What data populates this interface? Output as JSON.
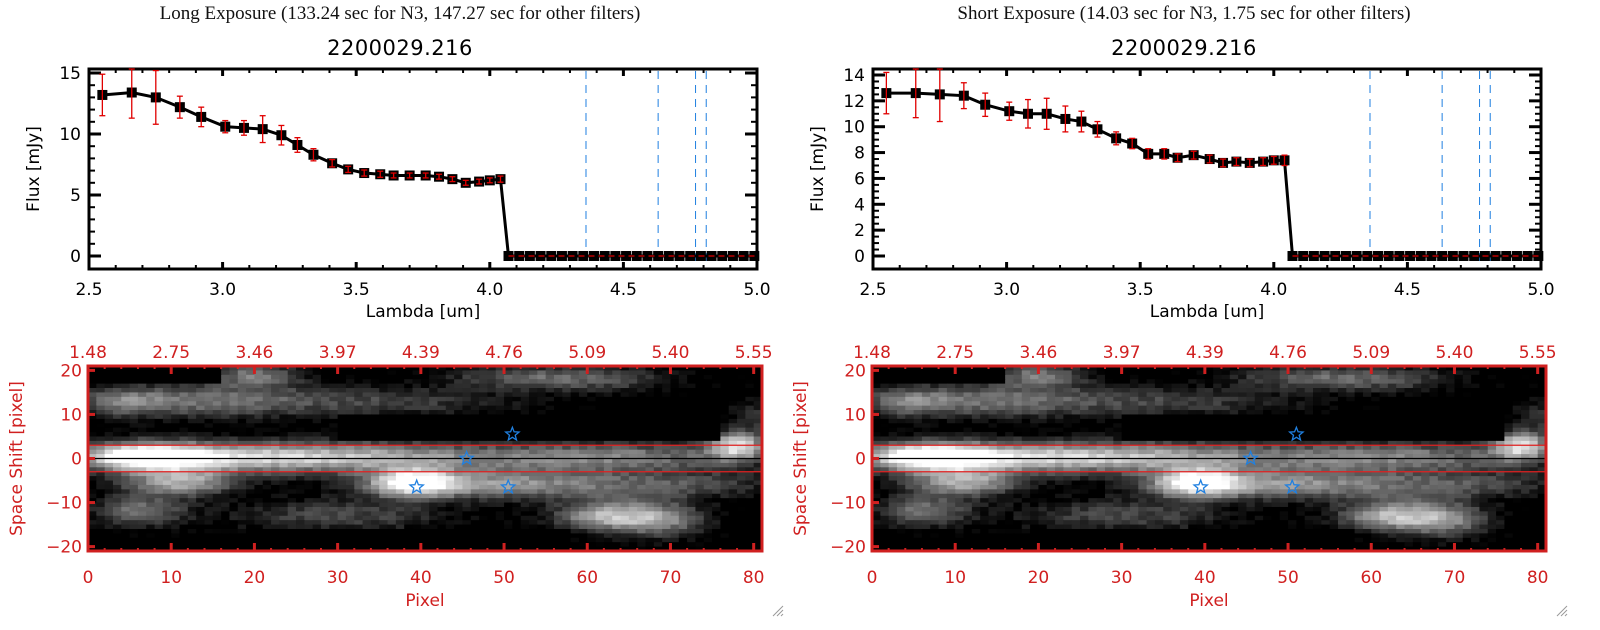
{
  "panels": [
    {
      "title": "Long Exposure (133.24 sec for N3, 147.27 sec for other filters)",
      "object_id": "2200029.216"
    },
    {
      "title": "Short Exposure (14.03 sec for N3, 1.75 sec for other filters)",
      "object_id": "2200029.216"
    }
  ],
  "chart_data": [
    {
      "type": "line",
      "title": "2200029.216",
      "xlabel": "Lambda [um]",
      "ylabel": "Flux [mJy]",
      "xlim": [
        2.5,
        5.0
      ],
      "ylim": [
        -0.5,
        15.5
      ],
      "xticks": [
        "2.5",
        "3.0",
        "3.5",
        "4.0",
        "4.5",
        "5.0"
      ],
      "xtick_values": [
        2.5,
        3.0,
        3.5,
        4.0,
        4.5,
        5.0
      ],
      "yticks": [
        "0",
        "5",
        "10",
        "15"
      ],
      "ytick_values": [
        0,
        5,
        10,
        15
      ],
      "series": [
        {
          "name": "flux",
          "x": [
            2.55,
            2.66,
            2.75,
            2.84,
            2.92,
            3.01,
            3.08,
            3.15,
            3.22,
            3.28,
            3.34,
            3.41,
            3.47,
            3.53,
            3.59,
            3.64,
            3.7,
            3.76,
            3.81,
            3.86,
            3.91,
            3.96,
            4.0,
            4.04,
            4.07,
            4.11,
            4.15,
            4.19,
            4.23,
            4.27,
            4.31,
            4.35,
            4.39,
            4.43,
            4.47,
            4.51,
            4.55,
            4.59,
            4.63,
            4.67,
            4.71,
            4.75,
            4.79,
            4.83,
            4.87,
            4.91,
            4.95,
            4.99
          ],
          "y": [
            13.2,
            13.4,
            13.0,
            12.2,
            11.4,
            10.6,
            10.5,
            10.4,
            9.9,
            9.1,
            8.3,
            7.6,
            7.1,
            6.8,
            6.7,
            6.6,
            6.6,
            6.6,
            6.5,
            6.3,
            6.0,
            6.1,
            6.2,
            6.3,
            0,
            0,
            0,
            0,
            0,
            0,
            0,
            0,
            0,
            0,
            0,
            0,
            0,
            0,
            0,
            0,
            0,
            0,
            0,
            0,
            0,
            0,
            0,
            0
          ],
          "yerr": [
            1.7,
            2.1,
            2.2,
            0.9,
            0.8,
            0.5,
            0.6,
            1.1,
            0.8,
            0.6,
            0.5,
            0.3,
            0.25,
            0.25,
            0.25,
            0.2,
            0.2,
            0.2,
            0.2,
            0.2,
            0.2,
            0.2,
            0.2,
            0.25,
            0,
            0,
            0,
            0,
            0,
            0,
            0,
            0,
            0,
            0,
            0,
            0,
            0,
            0,
            0,
            0,
            0,
            0,
            0,
            0,
            0,
            0,
            0,
            0
          ],
          "color": "#000000",
          "errcolor": "#e00000"
        }
      ],
      "zero_line": {
        "y": 0,
        "color": "#e00000",
        "style": "dashed"
      },
      "vlines": {
        "x": [
          4.36,
          4.63,
          4.77,
          4.81
        ],
        "color": "#2080e0",
        "style": "dashed"
      }
    },
    {
      "type": "line",
      "title": "2200029.216",
      "xlabel": "Lambda [um]",
      "ylabel": "Flux [mJy]",
      "xlim": [
        2.5,
        5.0
      ],
      "ylim": [
        -0.4,
        14.4
      ],
      "xticks": [
        "2.5",
        "3.0",
        "3.5",
        "4.0",
        "4.5",
        "5.0"
      ],
      "xtick_values": [
        2.5,
        3.0,
        3.5,
        4.0,
        4.5,
        5.0
      ],
      "yticks": [
        "0",
        "2",
        "4",
        "6",
        "8",
        "10",
        "12",
        "14"
      ],
      "ytick_values": [
        0,
        2,
        4,
        6,
        8,
        10,
        12,
        14
      ],
      "series": [
        {
          "name": "flux",
          "x": [
            2.55,
            2.66,
            2.75,
            2.84,
            2.92,
            3.01,
            3.08,
            3.15,
            3.22,
            3.28,
            3.34,
            3.41,
            3.47,
            3.53,
            3.59,
            3.64,
            3.7,
            3.76,
            3.81,
            3.86,
            3.91,
            3.96,
            4.0,
            4.04,
            4.07,
            4.11,
            4.15,
            4.19,
            4.23,
            4.27,
            4.31,
            4.35,
            4.39,
            4.43,
            4.47,
            4.51,
            4.55,
            4.59,
            4.63,
            4.67,
            4.71,
            4.75,
            4.79,
            4.83,
            4.87,
            4.91,
            4.95,
            4.99
          ],
          "y": [
            12.6,
            12.6,
            12.5,
            12.4,
            11.7,
            11.2,
            11.0,
            11.0,
            10.6,
            10.4,
            9.8,
            9.1,
            8.7,
            7.9,
            7.9,
            7.6,
            7.8,
            7.5,
            7.2,
            7.3,
            7.2,
            7.3,
            7.4,
            7.4,
            0,
            0,
            0,
            0,
            0,
            0,
            0,
            0,
            0,
            0,
            0,
            0,
            0,
            0,
            0,
            0,
            0,
            0,
            0,
            0,
            0,
            0,
            0,
            0
          ],
          "yerr": [
            1.6,
            1.9,
            2.1,
            1.0,
            0.9,
            0.7,
            1.1,
            1.2,
            1.0,
            0.8,
            0.6,
            0.5,
            0.4,
            0.4,
            0.4,
            0.3,
            0.3,
            0.3,
            0.3,
            0.3,
            0.3,
            0.3,
            0.3,
            0.4,
            0,
            0,
            0,
            0,
            0,
            0,
            0,
            0,
            0,
            0,
            0,
            0,
            0,
            0,
            0,
            0,
            0,
            0,
            0,
            0,
            0,
            0,
            0,
            0
          ],
          "color": "#000000",
          "errcolor": "#e00000"
        }
      ],
      "zero_line": {
        "y": 0,
        "color": "#e00000",
        "style": "dashed"
      },
      "vlines": {
        "x": [
          4.36,
          4.63,
          4.77,
          4.81
        ],
        "color": "#2080e0",
        "style": "dashed"
      }
    },
    {
      "type": "heatmap",
      "xlabel": "Pixel",
      "ylabel": "Space Shift [pixel]",
      "xlim": [
        0,
        81
      ],
      "ylim": [
        -21,
        21
      ],
      "xticks": [
        "0",
        "10",
        "20",
        "30",
        "40",
        "50",
        "60",
        "70",
        "80"
      ],
      "xtick_values": [
        0,
        10,
        20,
        30,
        40,
        50,
        60,
        70,
        80
      ],
      "top_xticks": [
        "1.48",
        "2.75",
        "3.46",
        "3.97",
        "4.39",
        "4.76",
        "5.09",
        "5.40",
        "5.55"
      ],
      "yticks": [
        "20",
        "10",
        "0",
        "-10",
        "-20"
      ],
      "ytick_values": [
        20,
        10,
        0,
        -10,
        -20
      ],
      "aperture_lines": [
        3,
        -3
      ],
      "center_line": 0,
      "stars": [
        {
          "x": 51,
          "y": 5.5
        },
        {
          "x": 45.5,
          "y": 0
        },
        {
          "x": 39.5,
          "y": -6.5
        },
        {
          "x": 50.5,
          "y": -6.5
        }
      ],
      "axis_color": "#d02020",
      "star_color": "#2080e0"
    },
    {
      "type": "heatmap",
      "xlabel": "Pixel",
      "ylabel": "Space Shift [pixel]",
      "xlim": [
        0,
        81
      ],
      "ylim": [
        -21,
        21
      ],
      "xticks": [
        "0",
        "10",
        "20",
        "30",
        "40",
        "50",
        "60",
        "70",
        "80"
      ],
      "xtick_values": [
        0,
        10,
        20,
        30,
        40,
        50,
        60,
        70,
        80
      ],
      "top_xticks": [
        "1.48",
        "2.75",
        "3.46",
        "3.97",
        "4.39",
        "4.76",
        "5.09",
        "5.40",
        "5.55"
      ],
      "yticks": [
        "20",
        "10",
        "0",
        "-10",
        "-20"
      ],
      "ytick_values": [
        20,
        10,
        0,
        -10,
        -20
      ],
      "aperture_lines": [
        3,
        -3
      ],
      "center_line": 0,
      "stars": [
        {
          "x": 51,
          "y": 5.5
        },
        {
          "x": 45.5,
          "y": 0
        },
        {
          "x": 39.5,
          "y": -6.5
        },
        {
          "x": 50.5,
          "y": -6.5
        }
      ],
      "axis_color": "#d02020",
      "star_color": "#2080e0"
    }
  ]
}
